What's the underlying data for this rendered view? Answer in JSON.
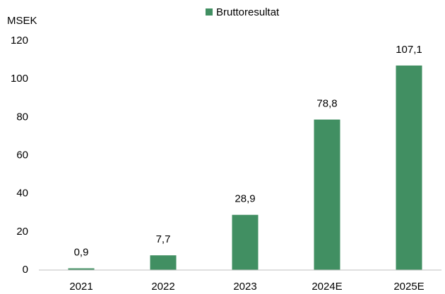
{
  "chart_data": {
    "type": "bar",
    "ylabel": "MSEK",
    "categories": [
      "2021",
      "2022",
      "2023",
      "2024E",
      "2025E"
    ],
    "series": [
      {
        "name": "Bruttoresultat",
        "color": "#418f62",
        "values": [
          0.9,
          7.7,
          28.9,
          78.8,
          107.1
        ],
        "value_labels": [
          "0,9",
          "7,7",
          "28,9",
          "78,8",
          "107,1"
        ]
      }
    ],
    "ylim": [
      0,
      120
    ],
    "yticks": [
      0,
      20,
      40,
      60,
      80,
      100,
      120
    ],
    "grid": false,
    "legend": "top"
  }
}
